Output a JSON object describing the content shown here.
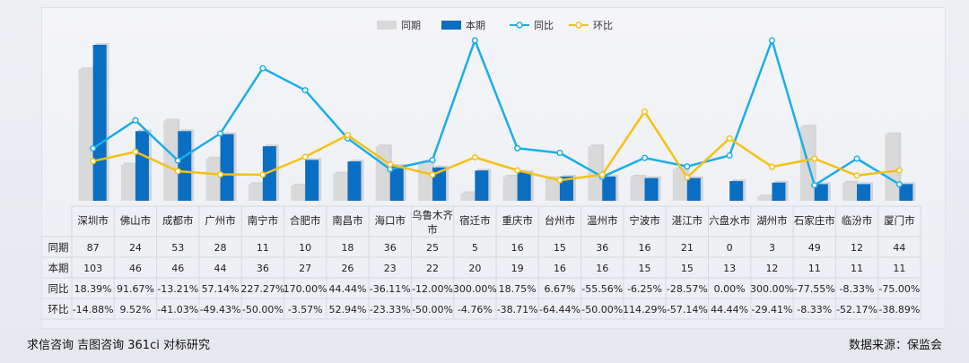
{
  "chart_data": {
    "type": "bar",
    "legend_position": "top-center",
    "categories": [
      "深圳市",
      "佛山市",
      "成都市",
      "广州市",
      "南宁市",
      "合肥市",
      "南昌市",
      "海口市",
      "乌鲁木齐市",
      "宿迁市",
      "重庆市",
      "台州市",
      "温州市",
      "宁波市",
      "湛江市",
      "六盘水市",
      "湖州市",
      "石家庄市",
      "临汾市",
      "厦门市"
    ],
    "series": [
      {
        "name": "同期",
        "kind": "bar",
        "color": "#d9d9d9",
        "values": [
          87,
          24,
          53,
          28,
          11,
          10,
          18,
          36,
          25,
          5,
          16,
          15,
          36,
          16,
          21,
          0,
          3,
          49,
          12,
          44
        ]
      },
      {
        "name": "本期",
        "kind": "bar",
        "color": "#0a6fc2",
        "values": [
          103,
          46,
          46,
          44,
          36,
          27,
          26,
          23,
          22,
          20,
          19,
          16,
          16,
          15,
          15,
          13,
          12,
          11,
          11,
          11
        ]
      },
      {
        "name": "同比",
        "kind": "line",
        "color": "#1aaee8",
        "values": [
          18.39,
          91.67,
          -13.21,
          57.14,
          227.27,
          170.0,
          44.44,
          -36.11,
          -12.0,
          300.0,
          18.75,
          6.67,
          -55.56,
          -6.25,
          -28.57,
          0.0,
          300.0,
          -77.55,
          -8.33,
          -75.0
        ]
      },
      {
        "name": "环比",
        "kind": "line",
        "color": "#f5c116",
        "values": [
          -14.88,
          9.52,
          -41.03,
          -49.43,
          -50.0,
          -3.57,
          52.94,
          -23.33,
          -50.0,
          -4.76,
          -38.71,
          -64.44,
          -50.0,
          114.29,
          -57.14,
          44.44,
          -29.41,
          -8.33,
          -52.17,
          -38.89
        ]
      }
    ],
    "table": {
      "row_labels": [
        "同期",
        "本期",
        "同比",
        "环比"
      ],
      "rows": [
        [
          "87",
          "24",
          "53",
          "28",
          "11",
          "10",
          "18",
          "36",
          "25",
          "5",
          "16",
          "15",
          "36",
          "16",
          "21",
          "0",
          "3",
          "49",
          "12",
          "44"
        ],
        [
          "103",
          "46",
          "46",
          "44",
          "36",
          "27",
          "26",
          "23",
          "22",
          "20",
          "19",
          "16",
          "16",
          "15",
          "15",
          "13",
          "12",
          "11",
          "11",
          "11"
        ],
        [
          "18.39%",
          "91.67%",
          "-13.21%",
          "57.14%",
          "227.27%",
          "170.00%",
          "44.44%",
          "-36.11%",
          "-12.00%",
          "300.00%",
          "18.75%",
          "6.67%",
          "-55.56%",
          "-6.25%",
          "-28.57%",
          "0.00%",
          "300.00%",
          "-77.55%",
          "-8.33%",
          "-75.00%"
        ],
        [
          "-14.88%",
          "9.52%",
          "-41.03%",
          "-49.43%",
          "-50.00%",
          "-3.57%",
          "52.94%",
          "-23.33%",
          "-50.00%",
          "-4.76%",
          "-38.71%",
          "-64.44%",
          "-50.00%",
          "114.29%",
          "-57.14%",
          "44.44%",
          "-29.41%",
          "-8.33%",
          "-52.17%",
          "-38.89%"
        ]
      ]
    }
  },
  "footer": {
    "left": "求信咨询 吉图咨询 361ci 对标研究",
    "right": "数据来源：保监会"
  }
}
